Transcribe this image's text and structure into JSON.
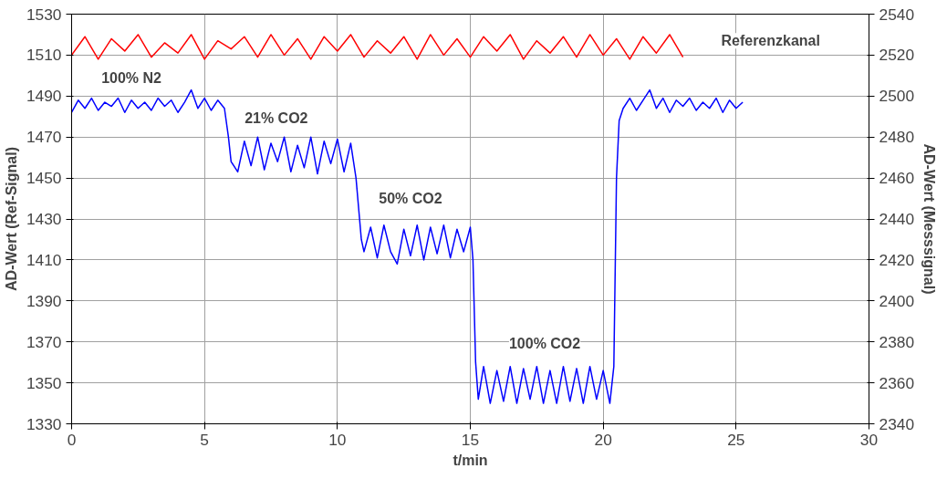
{
  "chart_data": {
    "type": "line",
    "xlabel": "t/min",
    "ylabel": "AD-Wert (Ref-Signal)",
    "y2label": "AD-Wert (Messsignal)",
    "xlim": [
      0,
      30
    ],
    "xticks": [
      0,
      5,
      10,
      15,
      20,
      25,
      30
    ],
    "ylim": [
      1330,
      1530
    ],
    "yticks": [
      1330,
      1350,
      1370,
      1390,
      1410,
      1430,
      1450,
      1470,
      1490,
      1510,
      1530
    ],
    "y2lim": [
      2340,
      2540
    ],
    "y2ticks": [
      2340,
      2360,
      2380,
      2400,
      2420,
      2440,
      2460,
      2480,
      2500,
      2520,
      2540
    ],
    "grid": true,
    "marker": "none",
    "line_style": "solid",
    "series": [
      {
        "color": "#ff0000",
        "x": [
          0,
          0.5,
          1,
          1.5,
          2,
          2.5,
          3,
          3.5,
          4,
          4.5,
          5,
          5.5,
          6,
          6.5,
          7,
          7.5,
          8,
          8.5,
          9,
          9.5,
          10,
          10.5,
          11,
          11.5,
          12,
          12.5,
          13,
          13.5,
          14,
          14.5,
          15,
          15.5,
          16,
          16.5,
          17,
          17.5,
          18,
          18.5,
          19,
          19.5,
          20,
          20.5,
          21,
          21.5,
          22,
          22.5,
          23
        ],
        "values": [
          1510,
          1519,
          1508,
          1518,
          1512,
          1520,
          1509,
          1516,
          1511,
          1520,
          1508,
          1517,
          1513,
          1519,
          1509,
          1520,
          1510,
          1518,
          1508,
          1519,
          1512,
          1520,
          1509,
          1517,
          1511,
          1519,
          1508,
          1520,
          1510,
          1518,
          1509,
          1519,
          1512,
          1520,
          1508,
          1517,
          1511,
          1519,
          1509,
          1520,
          1510,
          1518,
          1508,
          1519,
          1511,
          1520,
          1509
        ]
      },
      {
        "color": "#0000ff",
        "axis": "y2",
        "x": [
          0,
          0.25,
          0.5,
          0.75,
          1,
          1.25,
          1.5,
          1.75,
          2,
          2.25,
          2.5,
          2.75,
          3,
          3.25,
          3.5,
          3.75,
          4,
          4.25,
          4.5,
          4.75,
          5,
          5.25,
          5.5,
          5.75,
          5.9,
          6.0,
          6.25,
          6.5,
          6.75,
          7,
          7.25,
          7.5,
          7.75,
          8,
          8.25,
          8.5,
          8.75,
          9,
          9.25,
          9.5,
          9.75,
          10,
          10.25,
          10.5,
          10.7,
          10.8,
          10.9,
          11.0,
          11.25,
          11.5,
          11.75,
          12,
          12.25,
          12.5,
          12.75,
          13,
          13.25,
          13.5,
          13.75,
          14,
          14.25,
          14.5,
          14.75,
          15,
          15.1,
          15.2,
          15.3,
          15.5,
          15.75,
          16,
          16.25,
          16.5,
          16.75,
          17,
          17.25,
          17.5,
          17.75,
          18,
          18.25,
          18.5,
          18.75,
          19,
          19.25,
          19.5,
          19.75,
          20,
          20.25,
          20.4,
          20.5,
          20.6,
          20.75,
          21,
          21.25,
          21.5,
          21.75,
          22,
          22.25,
          22.5,
          22.75,
          23,
          23.25,
          23.5,
          23.75,
          24,
          24.25,
          24.5,
          24.75,
          25,
          25.25
        ],
        "values": [
          2492,
          2498,
          2494,
          2499,
          2493,
          2497,
          2495,
          2499,
          2492,
          2498,
          2494,
          2497,
          2493,
          2499,
          2495,
          2498,
          2492,
          2497,
          2503,
          2494,
          2499,
          2493,
          2498,
          2494,
          2480,
          2468,
          2463,
          2478,
          2466,
          2480,
          2464,
          2477,
          2468,
          2480,
          2463,
          2476,
          2465,
          2480,
          2462,
          2478,
          2467,
          2479,
          2463,
          2477,
          2460,
          2445,
          2430,
          2424,
          2436,
          2421,
          2437,
          2424,
          2418,
          2435,
          2422,
          2437,
          2420,
          2436,
          2423,
          2437,
          2421,
          2435,
          2424,
          2436,
          2420,
          2370,
          2352,
          2368,
          2350,
          2366,
          2351,
          2368,
          2350,
          2367,
          2352,
          2368,
          2350,
          2366,
          2350,
          2368,
          2351,
          2367,
          2350,
          2368,
          2352,
          2366,
          2350,
          2368,
          2460,
          2488,
          2494,
          2499,
          2493,
          2498,
          2503,
          2494,
          2499,
          2492,
          2498,
          2495,
          2499,
          2493,
          2497,
          2494,
          2499,
          2492,
          2498,
          2494,
          2497
        ]
      }
    ],
    "annotations": [
      "100% N2",
      "21% CO2",
      "50% CO2",
      "100% CO2",
      "Referenzkanal"
    ]
  }
}
